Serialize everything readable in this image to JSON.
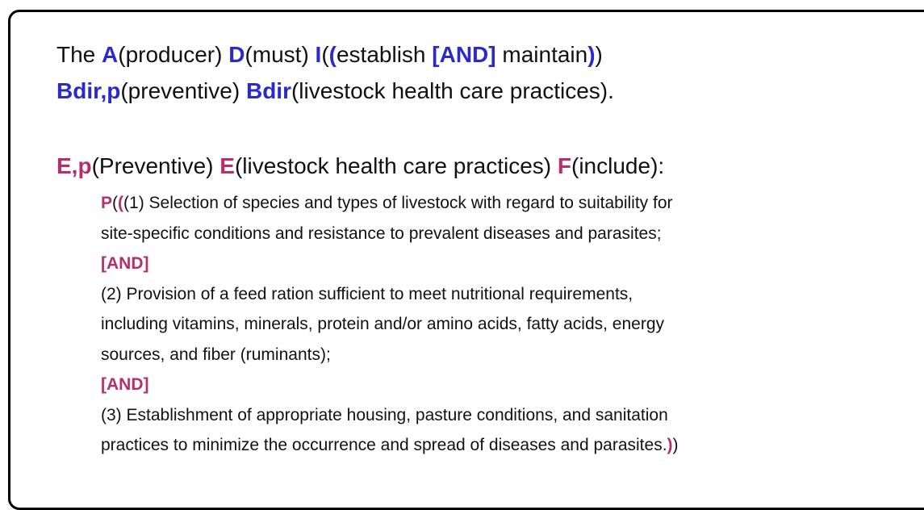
{
  "statement": [
    [
      {
        "text": "The "
      },
      {
        "text": "A",
        "color": "#2a2acc"
      },
      {
        "text": "(producer) "
      },
      {
        "text": "D",
        "color": "#2a2acc"
      },
      {
        "text": "(must) "
      },
      {
        "text": "I",
        "color": "#2a2acc"
      },
      {
        "text": "("
      },
      {
        "text": "(",
        "color": "#2a2acc"
      },
      {
        "text": "establish "
      },
      {
        "text": "[AND]",
        "color": "#2a2acc"
      },
      {
        "text": " maintain"
      },
      {
        "text": ")",
        "color": "#2a2acc"
      },
      {
        "text": ")"
      }
    ],
    [
      {
        "text": "Bdir,p",
        "color": "#2a2acc"
      },
      {
        "text": "(preventive) "
      },
      {
        "text": "Bdir",
        "color": "#2a2acc"
      },
      {
        "text": "(livestock health care practices)."
      }
    ]
  ],
  "definition": {
    "heading": [
      {
        "text": "E,p",
        "color": "#b3306e"
      },
      {
        "text": "(Preventive) "
      },
      {
        "text": "E",
        "color": "#b3306e"
      },
      {
        "text": "(livestock health care practices) "
      },
      {
        "text": "F",
        "color": "#b3306e"
      },
      {
        "text": "(include):"
      }
    ],
    "items": [
      [
        {
          "text": "P",
          "color": "#b3306e"
        },
        {
          "text": "("
        },
        {
          "text": "(",
          "color": "#b3306e"
        },
        {
          "text": "(1) Selection of species and types of livestock with regard to suitability for"
        }
      ],
      [
        {
          "text": "site-specific conditions and resistance to prevalent diseases and parasites;"
        }
      ],
      [
        {
          "text": "[AND]",
          "color": "#b3306e"
        }
      ],
      [
        {
          "text": "(2) Provision of a feed ration sufficient to meet nutritional requirements,"
        }
      ],
      [
        {
          "text": "including vitamins, minerals, protein and/or amino acids, fatty acids, energy"
        }
      ],
      [
        {
          "text": "sources, and fiber (ruminants);"
        }
      ],
      [
        {
          "text": "[AND]",
          "color": "#b3306e"
        }
      ],
      [
        {
          "text": "(3) Establishment of appropriate housing, pasture conditions, and sanitation"
        }
      ],
      [
        {
          "text": "practices to minimize the occurrence and spread of diseases and parasites."
        },
        {
          "text": ")",
          "color": "#b3306e"
        },
        {
          "text": ")"
        }
      ]
    ]
  }
}
